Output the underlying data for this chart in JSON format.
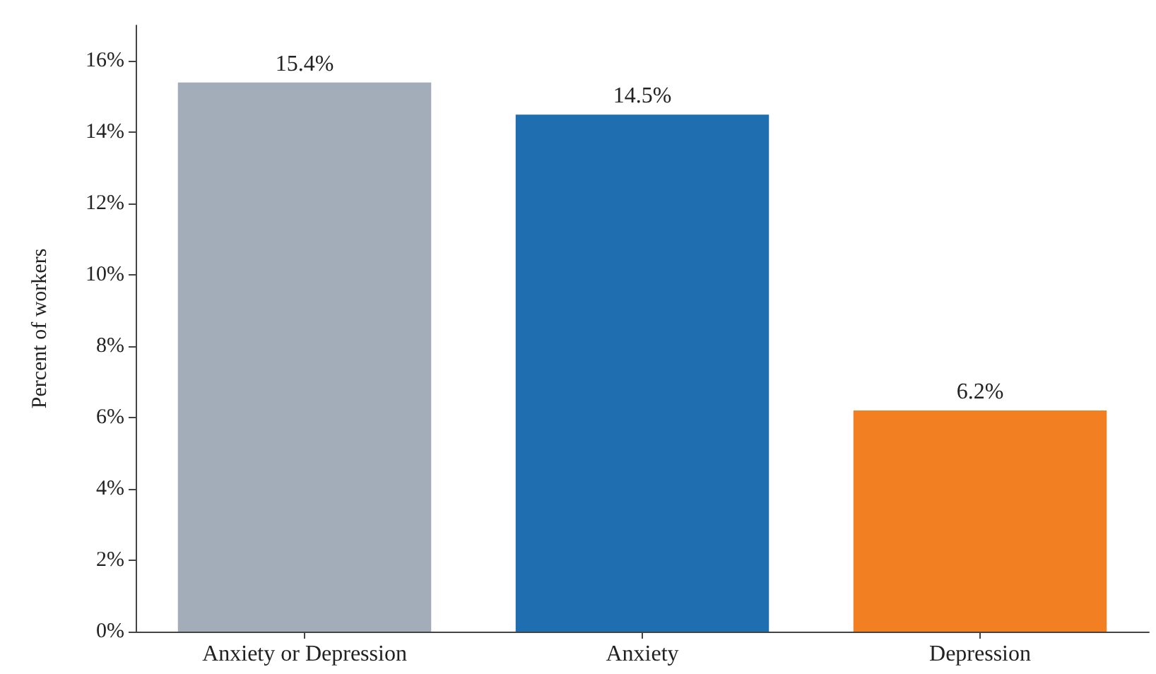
{
  "chart_data": {
    "type": "bar",
    "ylabel": "Percent of workers",
    "categories": [
      "Anxiety or Depression",
      "Anxiety",
      "Depression"
    ],
    "values": [
      15.4,
      14.5,
      6.2
    ],
    "colors": [
      "#a3acb9",
      "#1f6fb0",
      "#f28022"
    ],
    "value_labels": [
      "15.4%",
      "14.5%",
      "6.2%"
    ],
    "ylim": [
      0,
      17
    ],
    "yticks": [
      {
        "value": 0,
        "label": "0%"
      },
      {
        "value": 2,
        "label": "2%"
      },
      {
        "value": 4,
        "label": "4%"
      },
      {
        "value": 6,
        "label": "6%"
      },
      {
        "value": 8,
        "label": "8%"
      },
      {
        "value": 10,
        "label": "10%"
      },
      {
        "value": 12,
        "label": "12%"
      },
      {
        "value": 14,
        "label": "14%"
      },
      {
        "value": 16,
        "label": "16%"
      }
    ],
    "grid": false
  }
}
